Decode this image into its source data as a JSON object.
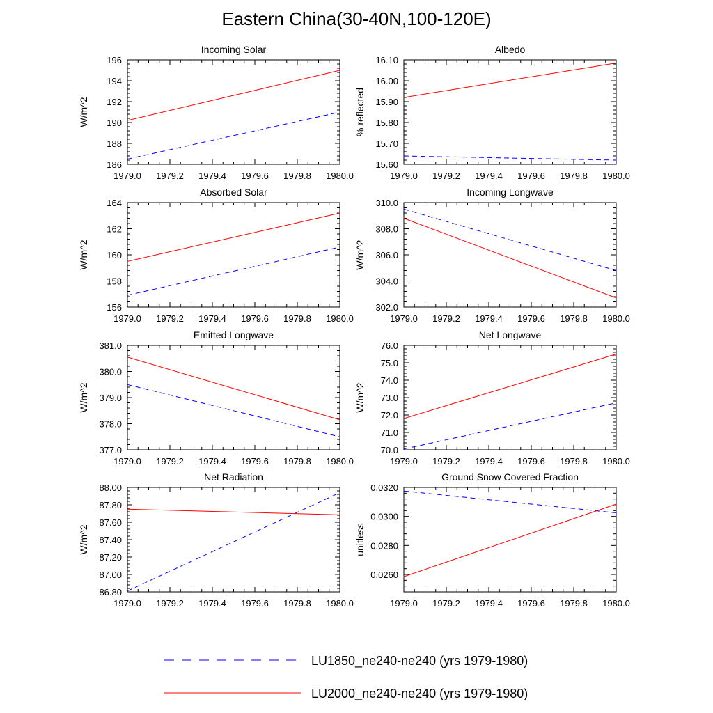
{
  "figure": {
    "title": "Eastern China(30-40N,100-120E)"
  },
  "colors": {
    "series_a": "#0000ff",
    "series_b": "#ff0000",
    "axis": "#000000"
  },
  "legend": {
    "entries": [
      {
        "label": "LU1850_ne240-ne240 (yrs 1979-1980)",
        "style": "dashed",
        "color": "#0000ff"
      },
      {
        "label": "LU2000_ne240-ne240 (yrs 1979-1980)",
        "style": "solid",
        "color": "#ff0000"
      }
    ]
  },
  "chart_data": [
    {
      "type": "line",
      "title": "Incoming Solar",
      "xlabel": "",
      "ylabel": "W/m^2",
      "xlim": [
        1979.0,
        1980.0
      ],
      "ylim": [
        186,
        196
      ],
      "xticks": [
        "1979.0",
        "1979.2",
        "1979.4",
        "1979.6",
        "1979.8",
        "1980.0"
      ],
      "yticks": [
        "186",
        "188",
        "190",
        "192",
        "194",
        "196"
      ],
      "series": [
        {
          "name": "LU1850_ne240-ne240 (yrs 1979-1980)",
          "x": [
            1979.0,
            1980.0
          ],
          "y": [
            186.5,
            191.0
          ]
        },
        {
          "name": "LU2000_ne240-ne240 (yrs 1979-1980)",
          "x": [
            1979.0,
            1980.0
          ],
          "y": [
            190.2,
            195.0
          ]
        }
      ]
    },
    {
      "type": "line",
      "title": "Albedo",
      "xlabel": "",
      "ylabel": "% reflected",
      "xlim": [
        1979.0,
        1980.0
      ],
      "ylim": [
        15.6,
        16.1
      ],
      "xticks": [
        "1979.0",
        "1979.2",
        "1979.4",
        "1979.6",
        "1979.8",
        "1980.0"
      ],
      "yticks": [
        "15.60",
        "15.70",
        "15.80",
        "15.90",
        "16.00",
        "16.10"
      ],
      "series": [
        {
          "name": "LU1850_ne240-ne240 (yrs 1979-1980)",
          "x": [
            1979.0,
            1980.0
          ],
          "y": [
            15.64,
            15.62
          ]
        },
        {
          "name": "LU2000_ne240-ne240 (yrs 1979-1980)",
          "x": [
            1979.0,
            1980.0
          ],
          "y": [
            15.92,
            16.085
          ]
        }
      ]
    },
    {
      "type": "line",
      "title": "Absorbed Solar",
      "xlabel": "",
      "ylabel": "W/m^2",
      "xlim": [
        1979.0,
        1980.0
      ],
      "ylim": [
        156,
        164
      ],
      "xticks": [
        "1979.0",
        "1979.2",
        "1979.4",
        "1979.6",
        "1979.8",
        "1980.0"
      ],
      "yticks": [
        "156",
        "158",
        "160",
        "162",
        "164"
      ],
      "series": [
        {
          "name": "LU1850_ne240-ne240 (yrs 1979-1980)",
          "x": [
            1979.0,
            1980.0
          ],
          "y": [
            156.9,
            160.6
          ]
        },
        {
          "name": "LU2000_ne240-ne240 (yrs 1979-1980)",
          "x": [
            1979.0,
            1980.0
          ],
          "y": [
            159.5,
            163.2
          ]
        }
      ]
    },
    {
      "type": "line",
      "title": "Incoming Longwave",
      "xlabel": "",
      "ylabel": "W/m^2",
      "xlim": [
        1979.0,
        1980.0
      ],
      "ylim": [
        302.0,
        310.0
      ],
      "xticks": [
        "1979.0",
        "1979.2",
        "1979.4",
        "1979.6",
        "1979.8",
        "1980.0"
      ],
      "yticks": [
        "302.0",
        "304.0",
        "306.0",
        "308.0",
        "310.0"
      ],
      "series": [
        {
          "name": "LU1850_ne240-ne240 (yrs 1979-1980)",
          "x": [
            1979.0,
            1980.0
          ],
          "y": [
            309.5,
            304.8
          ]
        },
        {
          "name": "LU2000_ne240-ne240 (yrs 1979-1980)",
          "x": [
            1979.0,
            1980.0
          ],
          "y": [
            308.8,
            302.7
          ]
        }
      ]
    },
    {
      "type": "line",
      "title": "Emitted Longwave",
      "xlabel": "",
      "ylabel": "W/m^2",
      "xlim": [
        1979.0,
        1980.0
      ],
      "ylim": [
        377.0,
        381.0
      ],
      "xticks": [
        "1979.0",
        "1979.2",
        "1979.4",
        "1979.6",
        "1979.8",
        "1980.0"
      ],
      "yticks": [
        "377.0",
        "378.0",
        "379.0",
        "380.0",
        "381.0"
      ],
      "series": [
        {
          "name": "LU1850_ne240-ne240 (yrs 1979-1980)",
          "x": [
            1979.0,
            1980.0
          ],
          "y": [
            379.5,
            377.5
          ]
        },
        {
          "name": "LU2000_ne240-ne240 (yrs 1979-1980)",
          "x": [
            1979.0,
            1980.0
          ],
          "y": [
            380.55,
            378.15
          ]
        }
      ]
    },
    {
      "type": "line",
      "title": "Net Longwave",
      "xlabel": "",
      "ylabel": "W/m^2",
      "xlim": [
        1979.0,
        1980.0
      ],
      "ylim": [
        70.0,
        76.0
      ],
      "xticks": [
        "1979.0",
        "1979.2",
        "1979.4",
        "1979.6",
        "1979.8",
        "1980.0"
      ],
      "yticks": [
        "70.0",
        "71.0",
        "72.0",
        "73.0",
        "74.0",
        "75.0",
        "76.0"
      ],
      "series": [
        {
          "name": "LU1850_ne240-ne240 (yrs 1979-1980)",
          "x": [
            1979.0,
            1980.0
          ],
          "y": [
            70.05,
            72.7
          ]
        },
        {
          "name": "LU2000_ne240-ne240 (yrs 1979-1980)",
          "x": [
            1979.0,
            1980.0
          ],
          "y": [
            71.8,
            75.5
          ]
        }
      ]
    },
    {
      "type": "line",
      "title": "Net Radiation",
      "xlabel": "",
      "ylabel": "W/m^2",
      "xlim": [
        1979.0,
        1980.0
      ],
      "ylim": [
        86.8,
        88.0
      ],
      "xticks": [
        "1979.0",
        "1979.2",
        "1979.4",
        "1979.6",
        "1979.8",
        "1980.0"
      ],
      "yticks": [
        "86.80",
        "87.00",
        "87.20",
        "87.40",
        "87.60",
        "87.80",
        "88.00"
      ],
      "series": [
        {
          "name": "LU1850_ne240-ne240 (yrs 1979-1980)",
          "x": [
            1979.0,
            1980.0
          ],
          "y": [
            86.81,
            87.94
          ]
        },
        {
          "name": "LU2000_ne240-ne240 (yrs 1979-1980)",
          "x": [
            1979.0,
            1980.0
          ],
          "y": [
            87.75,
            87.685
          ]
        }
      ]
    },
    {
      "type": "line",
      "title": "Ground Snow Covered Fraction",
      "xlabel": "",
      "ylabel": "unitless",
      "xlim": [
        1979.0,
        1980.0
      ],
      "ylim": [
        0.0248,
        0.032
      ],
      "xticks": [
        "1979.0",
        "1979.2",
        "1979.4",
        "1979.6",
        "1979.8",
        "1980.0"
      ],
      "yticks": [
        "0.0260",
        "0.0280",
        "0.0300",
        "0.0320"
      ],
      "series": [
        {
          "name": "LU1850_ne240-ne240 (yrs 1979-1980)",
          "x": [
            1979.0,
            1980.0
          ],
          "y": [
            0.03175,
            0.03025
          ]
        },
        {
          "name": "LU2000_ne240-ne240 (yrs 1979-1980)",
          "x": [
            1979.0,
            1980.0
          ],
          "y": [
            0.02585,
            0.03085
          ]
        }
      ]
    }
  ]
}
